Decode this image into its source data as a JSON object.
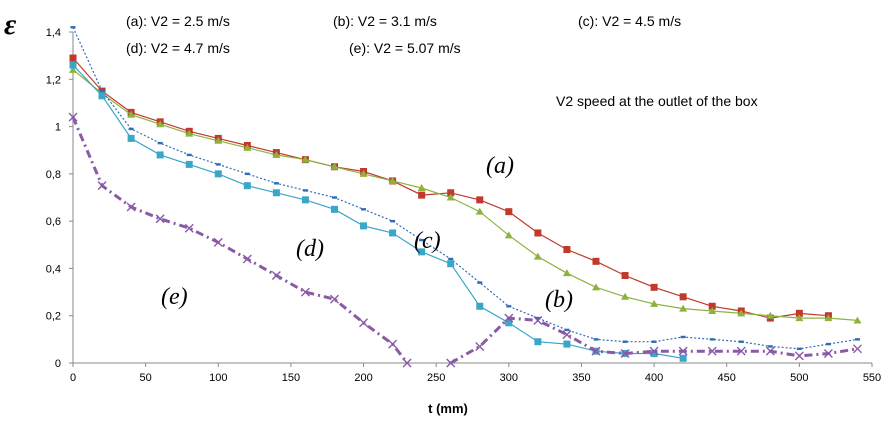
{
  "chart_data": {
    "type": "line",
    "ylabel": "ε",
    "xlabel": "t (mm)",
    "xlim": [
      0,
      550
    ],
    "ylim": [
      0,
      1.4
    ],
    "x_ticks": [
      "0",
      "50",
      "100",
      "150",
      "200",
      "250",
      "300",
      "350",
      "400",
      "450",
      "500",
      "550"
    ],
    "y_ticks": [
      "0",
      "0,2",
      "0,4",
      "0,6",
      "0,8",
      "1",
      "1,2",
      "1,4"
    ],
    "grid": false,
    "legend_lines": [
      "(a): V2 = 2.5 m/s",
      "(b): V2 = 3.1 m/s",
      "(c): V2 = 4.5 m/s",
      "(d): V2 = 4.7 m/s",
      "(e): V2 = 5.07 m/s"
    ],
    "annotation": "V2 speed at the outlet of the box",
    "curve_labels": [
      "(a)",
      "(b)",
      "(c)",
      "(d)",
      "(e)"
    ],
    "series": [
      {
        "color": "#c0392b",
        "marker": "square",
        "dash": "solid",
        "x": [
          0,
          20,
          40,
          60,
          80,
          100,
          120,
          140,
          160,
          180,
          200,
          220,
          240,
          260,
          280,
          300,
          320,
          340,
          360,
          380,
          400,
          420,
          440,
          460,
          480,
          500,
          520
        ],
        "y": [
          1.29,
          1.15,
          1.06,
          1.02,
          0.98,
          0.95,
          0.92,
          0.89,
          0.86,
          0.83,
          0.81,
          0.77,
          0.71,
          0.72,
          0.69,
          0.64,
          0.55,
          0.48,
          0.43,
          0.37,
          0.32,
          0.28,
          0.24,
          0.22,
          0.19,
          0.21,
          0.2
        ]
      },
      {
        "color": "#8db33f",
        "marker": "triangle",
        "dash": "solid",
        "x": [
          0,
          20,
          40,
          60,
          80,
          100,
          120,
          140,
          160,
          180,
          200,
          220,
          240,
          260,
          280,
          300,
          320,
          340,
          360,
          380,
          400,
          420,
          440,
          460,
          480,
          500,
          520,
          540
        ],
        "y": [
          1.24,
          1.14,
          1.05,
          1.01,
          0.97,
          0.94,
          0.91,
          0.88,
          0.86,
          0.83,
          0.8,
          0.77,
          0.74,
          0.7,
          0.64,
          0.54,
          0.45,
          0.38,
          0.32,
          0.28,
          0.25,
          0.23,
          0.22,
          0.21,
          0.2,
          0.19,
          0.19,
          0.18
        ]
      },
      {
        "color": "#2e6db5",
        "marker": "dash",
        "dash": "dotted",
        "x": [
          0,
          20,
          40,
          60,
          80,
          100,
          120,
          140,
          160,
          180,
          200,
          220,
          240,
          260,
          280,
          300,
          320,
          340,
          360,
          380,
          400,
          420,
          440,
          460,
          480,
          500,
          520,
          540
        ],
        "y": [
          1.42,
          1.15,
          0.99,
          0.93,
          0.88,
          0.84,
          0.8,
          0.76,
          0.73,
          0.7,
          0.65,
          0.6,
          0.52,
          0.44,
          0.34,
          0.24,
          0.19,
          0.14,
          0.1,
          0.09,
          0.09,
          0.11,
          0.1,
          0.09,
          0.07,
          0.06,
          0.08,
          0.1
        ]
      },
      {
        "color": "#3aa6c8",
        "marker": "square",
        "dash": "solid",
        "x": [
          0,
          20,
          40,
          60,
          80,
          100,
          120,
          140,
          160,
          180,
          200,
          220,
          240,
          260,
          280,
          300,
          320,
          340,
          360,
          380,
          400,
          420
        ],
        "y": [
          1.26,
          1.13,
          0.95,
          0.88,
          0.84,
          0.8,
          0.75,
          0.72,
          0.69,
          0.65,
          0.58,
          0.55,
          0.47,
          0.42,
          0.24,
          0.17,
          0.09,
          0.08,
          0.05,
          0.04,
          0.04,
          0.02
        ]
      },
      {
        "color": "#8a5aa8",
        "marker": "x",
        "dash": "dashdot",
        "x": [
          0,
          20,
          40,
          60,
          80,
          100,
          120,
          140,
          160,
          180,
          200,
          220,
          230,
          null,
          260,
          280,
          300,
          320,
          340,
          360,
          380,
          400,
          420,
          440,
          460,
          480,
          500,
          520,
          540
        ],
        "y": [
          1.04,
          0.75,
          0.66,
          0.61,
          0.57,
          0.51,
          0.44,
          0.37,
          0.3,
          0.27,
          0.17,
          0.08,
          0.0,
          null,
          0.0,
          0.07,
          0.19,
          0.18,
          0.12,
          0.05,
          0.04,
          0.05,
          0.05,
          0.05,
          0.05,
          0.05,
          0.03,
          0.04,
          0.06
        ]
      }
    ]
  }
}
